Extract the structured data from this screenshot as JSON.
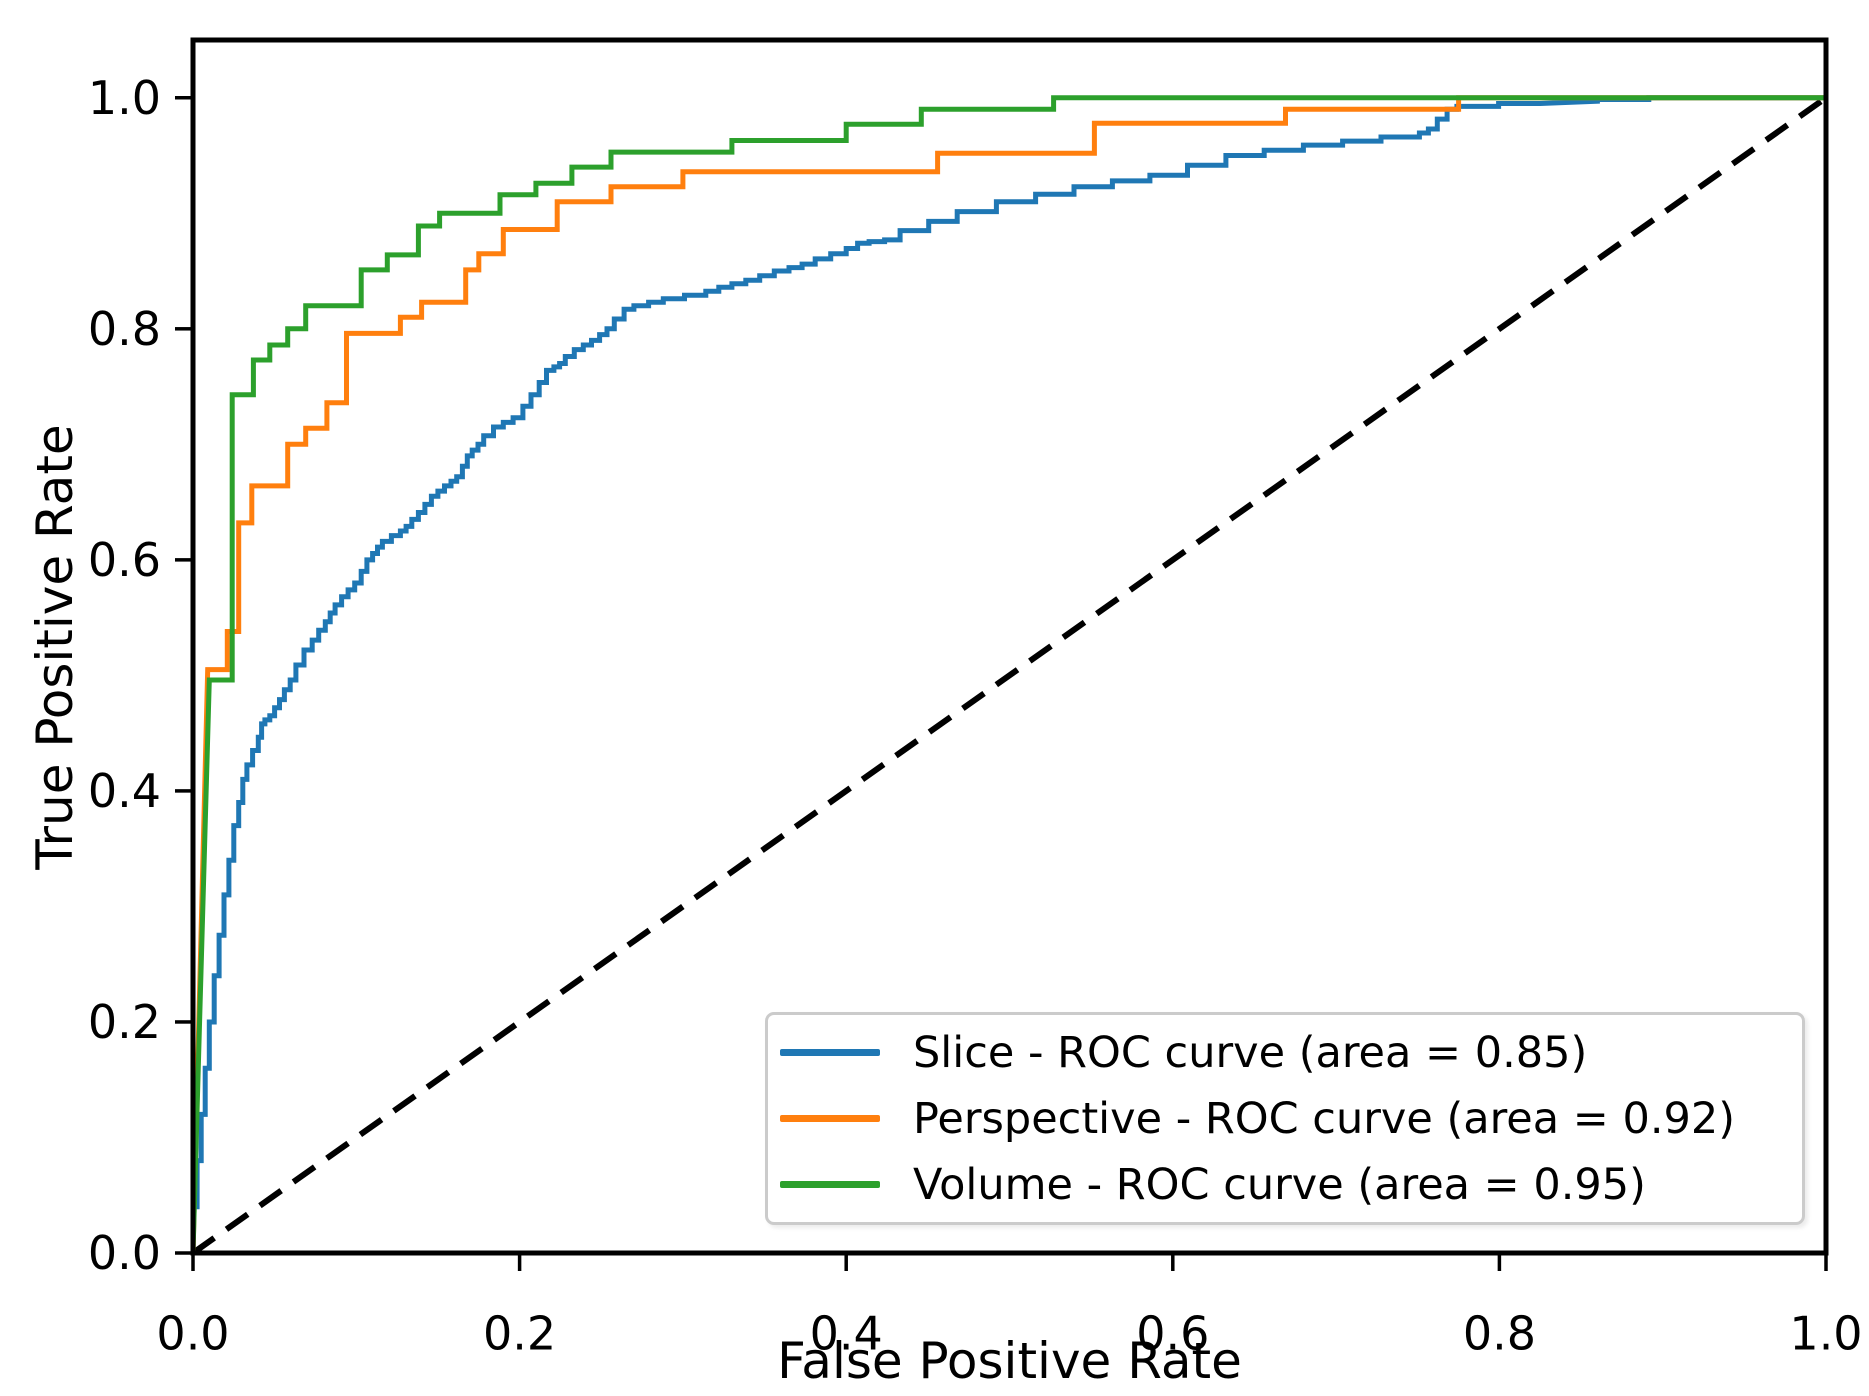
{
  "figure": {
    "background": "#ffffff"
  },
  "chart_data": {
    "type": "line",
    "subtype": "roc-curve",
    "title": "",
    "xlabel": "False Positive Rate",
    "ylabel": "True Positive Rate",
    "xlim": [
      0,
      1.0
    ],
    "ylim": [
      0,
      1.05
    ],
    "grid": false,
    "axis_color": "#000000",
    "xticks": {
      "values": [
        0,
        0.2,
        0.4,
        0.6,
        0.8,
        1.0
      ],
      "labels": [
        "0.0",
        "0.2",
        "0.4",
        "0.6",
        "0.8",
        "1.0"
      ]
    },
    "yticks": {
      "values": [
        0,
        0.2,
        0.4,
        0.6,
        0.8,
        1.0
      ],
      "labels": [
        "0.0",
        "0.2",
        "0.4",
        "0.6",
        "0.8",
        "1.0"
      ]
    },
    "legend": {
      "position": "lower right",
      "border_color": "#cbcbcb",
      "background": "#ffffff"
    },
    "reference_line": {
      "name": "chance-diagonal",
      "style": "dashed",
      "color": "#000000",
      "points": [
        [
          0,
          0
        ],
        [
          1,
          1
        ]
      ]
    },
    "series": [
      {
        "name": "Slice",
        "legend_label": "Slice - ROC curve (area = 0.85)",
        "area": 0.85,
        "color": "#1f77b4",
        "render": "fine-steps",
        "points": [
          [
            0,
            0
          ],
          [
            0.005,
            0.08
          ],
          [
            0.01,
            0.16
          ],
          [
            0.016,
            0.24
          ],
          [
            0.022,
            0.31
          ],
          [
            0.028,
            0.37
          ],
          [
            0.033,
            0.41
          ],
          [
            0.04,
            0.435
          ],
          [
            0.044,
            0.458
          ],
          [
            0.05,
            0.465
          ],
          [
            0.056,
            0.479
          ],
          [
            0.063,
            0.496
          ],
          [
            0.073,
            0.522
          ],
          [
            0.081,
            0.539
          ],
          [
            0.087,
            0.554
          ],
          [
            0.095,
            0.568
          ],
          [
            0.103,
            0.58
          ],
          [
            0.11,
            0.6
          ],
          [
            0.116,
            0.611
          ],
          [
            0.127,
            0.621
          ],
          [
            0.134,
            0.629
          ],
          [
            0.142,
            0.641
          ],
          [
            0.15,
            0.655
          ],
          [
            0.158,
            0.664
          ],
          [
            0.165,
            0.672
          ],
          [
            0.171,
            0.69
          ],
          [
            0.178,
            0.7
          ],
          [
            0.19,
            0.715
          ],
          [
            0.202,
            0.723
          ],
          [
            0.212,
            0.743
          ],
          [
            0.221,
            0.764
          ],
          [
            0.228,
            0.77
          ],
          [
            0.239,
            0.782
          ],
          [
            0.249,
            0.79
          ],
          [
            0.258,
            0.8
          ],
          [
            0.27,
            0.817
          ],
          [
            0.288,
            0.823
          ],
          [
            0.314,
            0.829
          ],
          [
            0.33,
            0.836
          ],
          [
            0.347,
            0.842
          ],
          [
            0.365,
            0.85
          ],
          [
            0.381,
            0.856
          ],
          [
            0.4,
            0.865
          ],
          [
            0.414,
            0.874
          ],
          [
            0.433,
            0.877
          ],
          [
            0.468,
            0.893
          ],
          [
            0.516,
            0.91
          ],
          [
            0.563,
            0.923
          ],
          [
            0.609,
            0.933
          ],
          [
            0.656,
            0.95
          ],
          [
            0.704,
            0.959
          ],
          [
            0.751,
            0.966
          ],
          [
            0.762,
            0.973
          ],
          [
            0.774,
            0.99
          ],
          [
            0.825,
            0.995
          ],
          [
            0.86,
            0.997
          ],
          [
            0.923,
            1.0
          ],
          [
            1.0,
            1.0
          ]
        ]
      },
      {
        "name": "Perspective",
        "legend_label": "Perspective - ROC curve (area = 0.92)",
        "area": 0.92,
        "color": "#ff7f0e",
        "render": "steps",
        "points": [
          [
            0,
            0
          ],
          [
            0.009,
            0.505
          ],
          [
            0.021,
            0.505
          ],
          [
            0.021,
            0.538
          ],
          [
            0.028,
            0.538
          ],
          [
            0.028,
            0.632
          ],
          [
            0.036,
            0.632
          ],
          [
            0.036,
            0.664
          ],
          [
            0.058,
            0.664
          ],
          [
            0.058,
            0.7
          ],
          [
            0.069,
            0.7
          ],
          [
            0.069,
            0.714
          ],
          [
            0.082,
            0.714
          ],
          [
            0.082,
            0.736
          ],
          [
            0.094,
            0.736
          ],
          [
            0.094,
            0.796
          ],
          [
            0.127,
            0.796
          ],
          [
            0.127,
            0.81
          ],
          [
            0.14,
            0.81
          ],
          [
            0.14,
            0.823
          ],
          [
            0.167,
            0.823
          ],
          [
            0.167,
            0.851
          ],
          [
            0.175,
            0.851
          ],
          [
            0.175,
            0.865
          ],
          [
            0.19,
            0.865
          ],
          [
            0.19,
            0.886
          ],
          [
            0.223,
            0.886
          ],
          [
            0.223,
            0.91
          ],
          [
            0.256,
            0.91
          ],
          [
            0.256,
            0.923
          ],
          [
            0.3,
            0.923
          ],
          [
            0.3,
            0.936
          ],
          [
            0.456,
            0.936
          ],
          [
            0.456,
            0.952
          ],
          [
            0.552,
            0.952
          ],
          [
            0.552,
            0.978
          ],
          [
            0.669,
            0.978
          ],
          [
            0.669,
            0.99
          ],
          [
            0.775,
            0.99
          ],
          [
            0.775,
            1.0
          ],
          [
            1.0,
            1.0
          ]
        ]
      },
      {
        "name": "Volume",
        "legend_label": "Volume - ROC curve (area = 0.95)",
        "area": 0.95,
        "color": "#2ca02c",
        "render": "steps",
        "points": [
          [
            0,
            0
          ],
          [
            0.01,
            0.496
          ],
          [
            0.024,
            0.496
          ],
          [
            0.024,
            0.743
          ],
          [
            0.037,
            0.743
          ],
          [
            0.037,
            0.773
          ],
          [
            0.047,
            0.773
          ],
          [
            0.047,
            0.786
          ],
          [
            0.058,
            0.786
          ],
          [
            0.058,
            0.8
          ],
          [
            0.069,
            0.8
          ],
          [
            0.069,
            0.82
          ],
          [
            0.103,
            0.82
          ],
          [
            0.103,
            0.851
          ],
          [
            0.119,
            0.851
          ],
          [
            0.119,
            0.864
          ],
          [
            0.138,
            0.864
          ],
          [
            0.138,
            0.889
          ],
          [
            0.151,
            0.889
          ],
          [
            0.151,
            0.9
          ],
          [
            0.188,
            0.9
          ],
          [
            0.188,
            0.916
          ],
          [
            0.21,
            0.916
          ],
          [
            0.21,
            0.926
          ],
          [
            0.232,
            0.926
          ],
          [
            0.232,
            0.94
          ],
          [
            0.256,
            0.94
          ],
          [
            0.256,
            0.953
          ],
          [
            0.33,
            0.953
          ],
          [
            0.33,
            0.963
          ],
          [
            0.4,
            0.963
          ],
          [
            0.4,
            0.977
          ],
          [
            0.446,
            0.977
          ],
          [
            0.446,
            0.99
          ],
          [
            0.527,
            0.99
          ],
          [
            0.527,
            1.0
          ],
          [
            1.0,
            1.0
          ]
        ]
      }
    ]
  }
}
